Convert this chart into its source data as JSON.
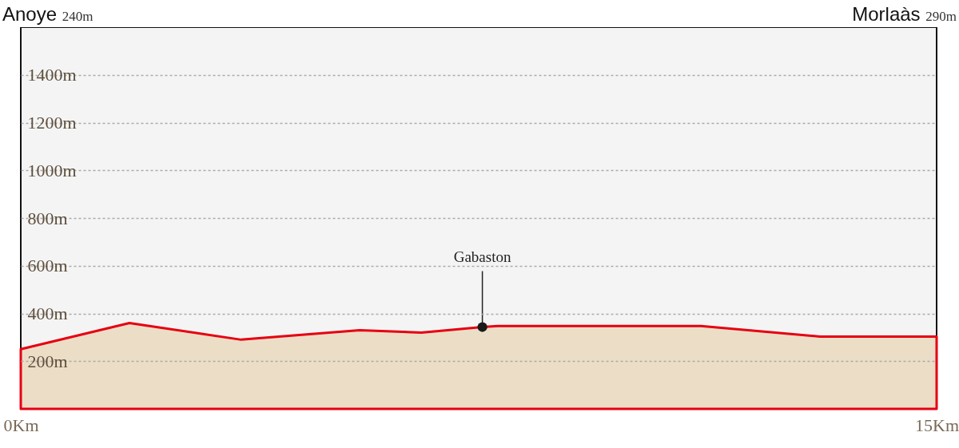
{
  "chart_data": {
    "type": "area",
    "x": [
      0,
      1.78,
      3.61,
      5.55,
      6.56,
      7.56,
      7.81,
      11.14,
      13.09,
      15
    ],
    "series": [
      {
        "color": "#e60012",
        "values": [
          250,
          360,
          290,
          330,
          320,
          343,
          347,
          347,
          303,
          303
        ]
      }
    ],
    "xlim": [
      0,
      15
    ],
    "xticks": [
      {
        "value": 0,
        "label": "0Km"
      },
      {
        "value": 15,
        "label": "15Km"
      }
    ],
    "ylim": [
      0,
      1600
    ],
    "yticks": [
      {
        "value": 200,
        "label": "200m"
      },
      {
        "value": 400,
        "label": "400m"
      },
      {
        "value": 600,
        "label": "600m"
      },
      {
        "value": 800,
        "label": "800m"
      },
      {
        "value": 1000,
        "label": "1000m"
      },
      {
        "value": 1200,
        "label": "1200m"
      },
      {
        "value": 1400,
        "label": "1400m"
      }
    ],
    "grid": "y",
    "annotations": [
      "Anoye 240m",
      "Morlaàs 290m",
      {
        "text": "Gabaston",
        "x": 7.56,
        "y": 343
      }
    ]
  }
}
